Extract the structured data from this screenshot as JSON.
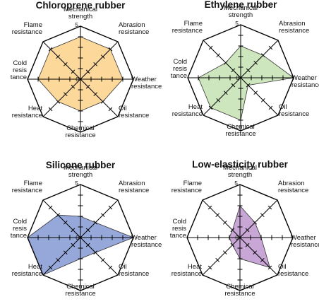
{
  "chart_data": [
    {
      "type": "radar",
      "title": "Chloroprene rubber",
      "axes": [
        {
          "label": [
            "Mechanical",
            "strength"
          ]
        },
        {
          "label": [
            "Abrasion",
            "resistance"
          ]
        },
        {
          "label": [
            "Weather",
            "resistance"
          ]
        },
        {
          "label": [
            "Oil",
            "resistance"
          ]
        },
        {
          "label": [
            "Chemical",
            "resistance"
          ]
        },
        {
          "label": [
            "Heat",
            "resistance"
          ]
        },
        {
          "label": [
            "Cold",
            "resis",
            "tance"
          ]
        },
        {
          "label": [
            "Flame",
            "resistance"
          ]
        }
      ],
      "scale": {
        "min": 0,
        "max": 5,
        "min_label": "0",
        "max_label": "5"
      },
      "values": [
        4,
        4,
        4,
        3,
        3,
        3,
        4,
        4
      ],
      "fill": "#FCD89A"
    },
    {
      "type": "radar",
      "title": "Ethylene rubber",
      "axes": [
        {
          "label": [
            "Mechanical",
            "strength"
          ]
        },
        {
          "label": [
            "Abrasion",
            "resistance"
          ]
        },
        {
          "label": [
            "Weather",
            "resistance"
          ]
        },
        {
          "label": [
            "Oil",
            "resistance"
          ]
        },
        {
          "label": [
            "Chemical",
            "resistance"
          ]
        },
        {
          "label": [
            "Heat",
            "resistance"
          ]
        },
        {
          "label": [
            "Cold",
            "resis",
            "tance"
          ]
        },
        {
          "label": [
            "Flame",
            "resistance"
          ]
        }
      ],
      "scale": {
        "min": 0,
        "max": 5,
        "min_label": "0",
        "max_label": "5"
      },
      "values": [
        3,
        3,
        5,
        1,
        4,
        4,
        4,
        2
      ],
      "fill": "#CDE6BD"
    },
    {
      "type": "radar",
      "title": "Silicone rubber",
      "axes": [
        {
          "label": [
            "Mechanical",
            "strength"
          ]
        },
        {
          "label": [
            "Abrasion",
            "resistance"
          ]
        },
        {
          "label": [
            "Weather",
            "resistance"
          ]
        },
        {
          "label": [
            "Oil",
            "resistance"
          ]
        },
        {
          "label": [
            "Chemical",
            "resistance"
          ]
        },
        {
          "label": [
            "Heat",
            "resistance"
          ]
        },
        {
          "label": [
            "Cold",
            "resis",
            "tance"
          ]
        },
        {
          "label": [
            "Flame",
            "resistance"
          ]
        }
      ],
      "scale": {
        "min": 0,
        "max": 5,
        "min_label": "0",
        "max_label": "5"
      },
      "values": [
        2,
        2,
        5,
        2,
        2,
        5,
        5,
        3
      ],
      "fill": "#96A8DA"
    },
    {
      "type": "radar",
      "title": "Low-elasticity rubber",
      "axes": [
        {
          "label": [
            "Mechanical",
            "strength"
          ]
        },
        {
          "label": [
            "Abrasion",
            "resistance"
          ]
        },
        {
          "label": [
            "Weather",
            "resistance"
          ]
        },
        {
          "label": [
            "Oil",
            "resistance"
          ]
        },
        {
          "label": [
            "Chemical",
            "resistance"
          ]
        },
        {
          "label": [
            "Heat",
            "resistance"
          ]
        },
        {
          "label": [
            "Cold",
            "resis",
            "tance"
          ]
        },
        {
          "label": [
            "Flame",
            "resistance"
          ]
        }
      ],
      "scale": {
        "min": 0,
        "max": 5,
        "min_label": "0",
        "max_label": "5"
      },
      "values": [
        3,
        2,
        2,
        4,
        2,
        1,
        1,
        1
      ],
      "fill": "#C8A6D6"
    }
  ]
}
